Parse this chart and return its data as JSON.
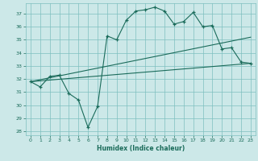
{
  "xlabel": "Humidex (Indice chaleur)",
  "bg_color": "#cce8e8",
  "grid_color": "#7dbfbf",
  "line_color": "#1a6b5a",
  "xlim": [
    -0.5,
    23.5
  ],
  "ylim": [
    27.7,
    37.8
  ],
  "yticks": [
    28,
    29,
    30,
    31,
    32,
    33,
    34,
    35,
    36,
    37
  ],
  "xticks": [
    0,
    1,
    2,
    3,
    4,
    5,
    6,
    7,
    8,
    9,
    10,
    11,
    12,
    13,
    14,
    15,
    16,
    17,
    18,
    19,
    20,
    21,
    22,
    23
  ],
  "line1_x": [
    0,
    1,
    2,
    3,
    4,
    5,
    6,
    7,
    8,
    9,
    10,
    11,
    12,
    13,
    14,
    15,
    16,
    17,
    18,
    19,
    20,
    21,
    22,
    23
  ],
  "line1_y": [
    31.8,
    31.4,
    32.2,
    32.3,
    30.9,
    30.4,
    28.3,
    29.9,
    35.3,
    35.0,
    36.5,
    37.2,
    37.3,
    37.5,
    37.2,
    36.2,
    36.4,
    37.1,
    36.0,
    36.1,
    34.3,
    34.4,
    33.3,
    33.2
  ],
  "line2_x": [
    0,
    23
  ],
  "line2_y": [
    31.8,
    35.2
  ],
  "line3_x": [
    0,
    23
  ],
  "line3_y": [
    31.8,
    33.2
  ]
}
